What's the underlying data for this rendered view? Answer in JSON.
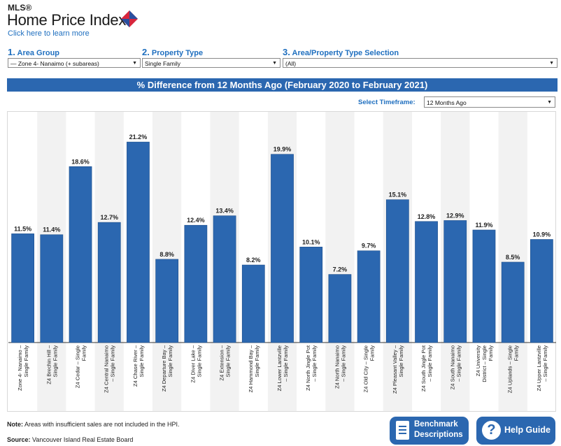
{
  "header": {
    "mls": "MLS®",
    "title": "Home Price Index",
    "learn_more": "Click here to learn more"
  },
  "filters": {
    "area_group": {
      "num": "1.",
      "label": "Area Group",
      "value": "— Zone 4- Nanaimo (+ subareas)"
    },
    "property_type": {
      "num": "2.",
      "label": "Property Type",
      "value": "Single Family"
    },
    "area_property_selection": {
      "num": "3.",
      "label": "Area/Property Type Selection",
      "value": "(All)"
    }
  },
  "timeframe": {
    "label": "Select Timeframe:",
    "value": "12 Months Ago"
  },
  "chart_data": {
    "type": "bar",
    "title": "% Difference from 12 Months Ago (February 2020 to February 2021)",
    "categories": [
      "Zone 4- Nanaimo – Single Family",
      "Z4 Brechin Hill – Single Family",
      "Z4 Cedar – Single Family",
      "Z4 Central Nanaimo – Single Family",
      "Z4 Chase River – Single Family",
      "Z4 Departure Bay – Single Family",
      "Z4 Diver Lake – Single Family",
      "Z4 Extension – Single Family",
      "Z4 Hammond Bay – Single Family",
      "Z4 Lower Lantzville – Single Family",
      "Z4 North Jingle Pot – Single Family",
      "Z4 North Nanaimo – Single Family",
      "Z4 Old City – Single Family",
      "Z4 Pleasant Valley – Single Family",
      "Z4 South Jingle Pot – Single Family",
      "Z4 South Nanaimo – Single Family",
      "Z4 University District – Single Family",
      "Z4 Uplands – Single Family",
      "Z4 Upper Lantzville – Single Family"
    ],
    "tick_lines": [
      [
        "Zone 4- Nanaimo –",
        "Single Family"
      ],
      [
        "Z4 Brechin Hill –",
        "Single Family"
      ],
      [
        "Z4 Cedar – Single",
        "Family"
      ],
      [
        "Z4 Central Nanaimo",
        "– Single Family"
      ],
      [
        "Z4 Chase River –",
        "Single Family"
      ],
      [
        "Z4 Departure Bay –",
        "Single Family"
      ],
      [
        "Z4 Diver Lake –",
        "Single Family"
      ],
      [
        "Z4 Extension –",
        "Single Family"
      ],
      [
        "Z4 Hammond Bay –",
        "Single Family"
      ],
      [
        "Z4 Lower Lantzville",
        "– Single Family"
      ],
      [
        "Z4 North Jingle Pot",
        "– Single Family"
      ],
      [
        "Z4 North Nanaimo",
        "– Single Family"
      ],
      [
        "Z4 Old City – Single",
        "Family"
      ],
      [
        "Z4 Pleasant Valley –",
        "Single Family"
      ],
      [
        "Z4 South Jingle Pot",
        "– Single Family"
      ],
      [
        "Z4 South Nanaimo",
        "– Single Family"
      ],
      [
        "Z4 University",
        "District – Single",
        "Family"
      ],
      [
        "Z4 Uplands – Single",
        "Family"
      ],
      [
        "Z4 Upper Lantzville",
        "– Single Family"
      ]
    ],
    "values": [
      11.5,
      11.4,
      18.6,
      12.7,
      21.2,
      8.8,
      12.4,
      13.4,
      8.2,
      19.9,
      10.1,
      7.2,
      9.7,
      15.1,
      12.8,
      12.9,
      11.9,
      8.5,
      10.9
    ],
    "labels": [
      "11.5%",
      "11.4%",
      "18.6%",
      "12.7%",
      "21.2%",
      "8.8%",
      "12.4%",
      "13.4%",
      "8.2%",
      "19.9%",
      "10.1%",
      "7.2%",
      "9.7%",
      "15.1%",
      "12.8%",
      "12.9%",
      "11.9%",
      "8.5%",
      "10.9%"
    ],
    "ylim": [
      0,
      23.5
    ],
    "grid": false,
    "bar_color": "#2b67b0",
    "band_color": "#f2f2f2"
  },
  "footer": {
    "note_label": "Note:",
    "note_text": " Areas with insufficient sales are not included in the HPI.",
    "source_label": "Source:",
    "source_text": " Vancouver Island Real Estate Board"
  },
  "buttons": {
    "benchmark_line1": "Benchmark",
    "benchmark_line2": "Descriptions",
    "help": "Help Guide"
  }
}
